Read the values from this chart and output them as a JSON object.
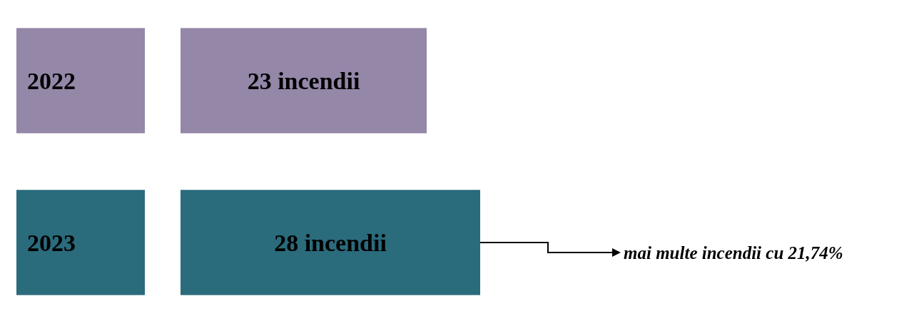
{
  "chart_data": {
    "type": "bar",
    "orientation": "horizontal",
    "categories": [
      "2022",
      "2023"
    ],
    "values": [
      23,
      28
    ],
    "colors": [
      "#9487a8",
      "#2a6b7c"
    ],
    "value_labels": [
      "23 incendii",
      "28 incendii"
    ],
    "annotations": [
      "mai multe incendii cu 21,74%"
    ]
  }
}
